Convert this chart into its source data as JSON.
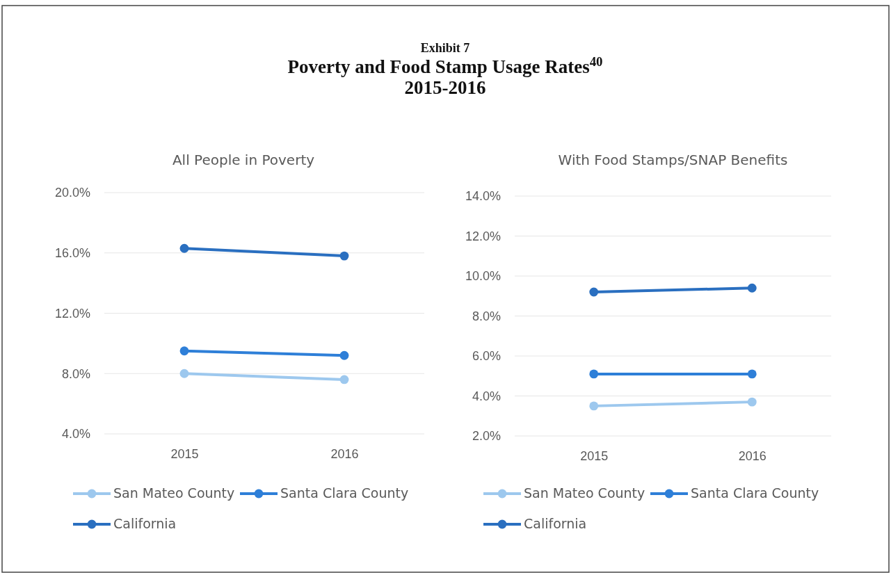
{
  "chart_data": [
    {
      "type": "line",
      "title": "All People in Poverty",
      "annotations": [
        "Exhibit 7",
        "Poverty and Food Stamp Usage Rates$^{40}$",
        "2015-2016"
      ],
      "categories": [
        "2015",
        "2016"
      ],
      "series": [
        {
          "name": "San Mateo County",
          "color": "#9dc8ee",
          "values": [
            8.0,
            7.6
          ]
        },
        {
          "name": "Santa Clara County",
          "color": "#2e7fd8",
          "values": [
            9.5,
            9.2
          ]
        },
        {
          "name": "California",
          "color": "#2a6fc0",
          "values": [
            16.3,
            15.8
          ]
        }
      ],
      "ylim": [
        4,
        20
      ],
      "yticks": [
        {
          "value": 4,
          "label": "4.0%"
        },
        {
          "value": 8,
          "label": "8.0%"
        },
        {
          "value": 12,
          "label": "12.0%"
        },
        {
          "value": 16,
          "label": "16.0%"
        },
        {
          "value": 20,
          "label": "20.0%"
        }
      ],
      "grid": "y",
      "legend": "bottom",
      "marker": "circle",
      "line_style": "solid"
    },
    {
      "type": "line",
      "title": "With Food Stamps/SNAP Benefits",
      "categories": [
        "2015",
        "2016"
      ],
      "series": [
        {
          "name": "San Mateo County",
          "color": "#9dc8ee",
          "values": [
            3.5,
            3.7
          ]
        },
        {
          "name": "Santa Clara County",
          "color": "#2e7fd8",
          "values": [
            5.1,
            5.1
          ]
        },
        {
          "name": "California",
          "color": "#2a6fc0",
          "values": [
            9.2,
            9.4
          ]
        }
      ],
      "ylim": [
        2,
        14
      ],
      "yticks": [
        {
          "value": 2,
          "label": "2.0%"
        },
        {
          "value": 4,
          "label": "4.0%"
        },
        {
          "value": 6,
          "label": "6.0%"
        },
        {
          "value": 8,
          "label": "8.0%"
        },
        {
          "value": 10,
          "label": "10.0%"
        },
        {
          "value": 12,
          "label": "12.0%"
        },
        {
          "value": 14,
          "label": "14.0%"
        }
      ],
      "grid": "y",
      "legend": "bottom",
      "marker": "circle",
      "line_style": "solid"
    }
  ]
}
